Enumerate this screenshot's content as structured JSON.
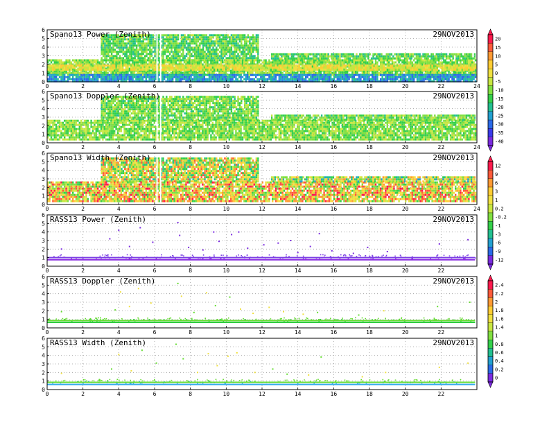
{
  "figure": {
    "date_label": "29NOV2013"
  },
  "chart_data": [
    {
      "type": "heatmap",
      "title": "Spano13 Power (Zenith)",
      "date": "29NOV2013",
      "xlim": [
        0,
        24
      ],
      "ylim": [
        0,
        6
      ],
      "xticks": [
        "0",
        "2",
        "4",
        "6",
        "8",
        "10",
        "12",
        "14",
        "16",
        "18",
        "20",
        "22",
        "24"
      ],
      "yticks": [
        "0",
        "1",
        "2",
        "3",
        "4",
        "5",
        "6"
      ],
      "grid": true,
      "colorbar": "cb-a",
      "layers": [
        {
          "x0": 3.0,
          "x1": 11.8,
          "y0": 2.6,
          "y1": 5.5,
          "level": 0.45
        },
        {
          "x0": 0.0,
          "x1": 23.9,
          "y0": 0.9,
          "y1": 2.6,
          "level": 0.5
        },
        {
          "x0": 12.5,
          "x1": 23.9,
          "y0": 2.6,
          "y1": 3.3,
          "level": 0.45
        },
        {
          "x0": 0.0,
          "x1": 23.9,
          "y0": 0.1,
          "y1": 0.9,
          "level": 0.25
        },
        {
          "x0": 0.0,
          "x1": 23.9,
          "y0": 1.5,
          "y1": 2.0,
          "level": 0.65
        }
      ]
    },
    {
      "type": "heatmap",
      "title": "Spano13 Doppler (Zenith)",
      "date": "29NOV2013",
      "xlim": [
        0,
        24
      ],
      "ylim": [
        0,
        6
      ],
      "xticks": [
        "0",
        "2",
        "4",
        "6",
        "8",
        "10",
        "12",
        "14",
        "16",
        "18",
        "20",
        "22",
        "24"
      ],
      "yticks": [
        "0",
        "1",
        "2",
        "3",
        "4",
        "5",
        "6"
      ],
      "grid": true,
      "colorbar": "cb-a",
      "layers": [
        {
          "x0": 3.0,
          "x1": 11.8,
          "y0": 2.6,
          "y1": 5.5,
          "level": 0.48
        },
        {
          "x0": 0.0,
          "x1": 23.9,
          "y0": 0.3,
          "y1": 2.7,
          "level": 0.5
        },
        {
          "x0": 12.5,
          "x1": 23.9,
          "y0": 2.6,
          "y1": 3.3,
          "level": 0.48
        }
      ]
    },
    {
      "type": "heatmap",
      "title": "Spano13 Width (Zenith)",
      "date": "29NOV2013",
      "xlim": [
        0,
        24
      ],
      "ylim": [
        0,
        6
      ],
      "xticks": [
        "0",
        "2",
        "4",
        "6",
        "8",
        "10",
        "12",
        "14",
        "16",
        "18",
        "20",
        "22",
        "24"
      ],
      "yticks": [
        "0",
        "1",
        "2",
        "3",
        "4",
        "5",
        "6"
      ],
      "grid": true,
      "colorbar": "cb-b",
      "layers": [
        {
          "x0": 3.0,
          "x1": 11.8,
          "y0": 2.6,
          "y1": 5.5,
          "level": 0.62
        },
        {
          "x0": 0.0,
          "x1": 23.9,
          "y0": 0.4,
          "y1": 2.7,
          "level": 0.7
        },
        {
          "x0": 12.5,
          "x1": 23.9,
          "y0": 2.6,
          "y1": 3.3,
          "level": 0.55
        }
      ]
    },
    {
      "type": "scatter",
      "title": "RASS13 Power (Zenith)",
      "date": "29NOV2013",
      "xlim": [
        0,
        24
      ],
      "ylim": [
        0,
        6
      ],
      "xticks": [
        "0",
        "2",
        "4",
        "6",
        "8",
        "10",
        "12",
        "14",
        "16",
        "18",
        "20",
        "22"
      ],
      "yticks": [
        "0",
        "1",
        "2",
        "3",
        "4",
        "5",
        "6"
      ],
      "grid": true,
      "colorbar": "cb-b",
      "bands": [
        {
          "y": 0.75,
          "x0": 0.0,
          "x1": 23.9,
          "color": "#8a2be2"
        },
        {
          "y": 1.0,
          "x0": 0.0,
          "x1": 23.9,
          "color": "#7b3fe4"
        }
      ],
      "points": [
        {
          "x": 0.8,
          "y": 2.0
        },
        {
          "x": 3.5,
          "y": 3.2
        },
        {
          "x": 4.0,
          "y": 4.2
        },
        {
          "x": 4.6,
          "y": 2.3
        },
        {
          "x": 5.2,
          "y": 4.5
        },
        {
          "x": 5.9,
          "y": 2.8
        },
        {
          "x": 7.3,
          "y": 5.1
        },
        {
          "x": 7.4,
          "y": 3.6
        },
        {
          "x": 7.9,
          "y": 2.2
        },
        {
          "x": 8.7,
          "y": 1.9
        },
        {
          "x": 9.3,
          "y": 4.0
        },
        {
          "x": 9.6,
          "y": 2.9
        },
        {
          "x": 10.3,
          "y": 3.7
        },
        {
          "x": 10.7,
          "y": 4.0
        },
        {
          "x": 11.2,
          "y": 2.1
        },
        {
          "x": 12.1,
          "y": 2.5
        },
        {
          "x": 12.9,
          "y": 2.7
        },
        {
          "x": 13.6,
          "y": 3.0
        },
        {
          "x": 14.0,
          "y": 1.6
        },
        {
          "x": 14.7,
          "y": 2.3
        },
        {
          "x": 15.2,
          "y": 3.8
        },
        {
          "x": 15.9,
          "y": 1.8
        },
        {
          "x": 17.1,
          "y": 1.5
        },
        {
          "x": 17.9,
          "y": 2.2
        },
        {
          "x": 19.0,
          "y": 1.7
        },
        {
          "x": 21.9,
          "y": 2.6
        },
        {
          "x": 23.5,
          "y": 3.1
        }
      ]
    },
    {
      "type": "scatter",
      "title": "RASS13 Doppler (Zenith)",
      "date": "29NOV2013",
      "xlim": [
        0,
        24
      ],
      "ylim": [
        0,
        6
      ],
      "xticks": [
        "0",
        "2",
        "4",
        "6",
        "8",
        "10",
        "12",
        "14",
        "16",
        "18",
        "20",
        "22"
      ],
      "yticks": [
        "0",
        "1",
        "2",
        "3",
        "4",
        "5",
        "6"
      ],
      "grid": true,
      "colorbar": "cb-c",
      "bands": [
        {
          "y": 0.65,
          "x0": 0.0,
          "x1": 23.9,
          "color": "#2ecc40"
        },
        {
          "y": 0.85,
          "x0": 0.0,
          "x1": 23.9,
          "color": "#66dd33"
        }
      ],
      "points": [
        {
          "x": 0.8,
          "y": 1.9
        },
        {
          "x": 3.8,
          "y": 2.1
        },
        {
          "x": 4.1,
          "y": 4.2
        },
        {
          "x": 4.6,
          "y": 2.5
        },
        {
          "x": 5.1,
          "y": 4.6
        },
        {
          "x": 5.8,
          "y": 2.9
        },
        {
          "x": 7.3,
          "y": 5.2
        },
        {
          "x": 7.5,
          "y": 3.7
        },
        {
          "x": 8.2,
          "y": 1.8
        },
        {
          "x": 8.9,
          "y": 4.1
        },
        {
          "x": 9.4,
          "y": 2.6
        },
        {
          "x": 10.2,
          "y": 3.6
        },
        {
          "x": 10.8,
          "y": 2.2
        },
        {
          "x": 11.5,
          "y": 1.7
        },
        {
          "x": 12.4,
          "y": 2.4
        },
        {
          "x": 13.2,
          "y": 1.9
        },
        {
          "x": 14.3,
          "y": 1.6
        },
        {
          "x": 15.1,
          "y": 1.8
        },
        {
          "x": 17.4,
          "y": 1.5
        },
        {
          "x": 18.8,
          "y": 2.0
        },
        {
          "x": 21.8,
          "y": 2.5
        },
        {
          "x": 23.6,
          "y": 3.0
        }
      ]
    },
    {
      "type": "scatter",
      "title": "RASS13 Width (Zenith)",
      "date": "29NOV2013",
      "xlim": [
        0,
        24
      ],
      "ylim": [
        0,
        6
      ],
      "xticks": [
        "0",
        "2",
        "4",
        "6",
        "8",
        "10",
        "12",
        "14",
        "16",
        "18",
        "20",
        "22"
      ],
      "yticks": [
        "0",
        "1",
        "2",
        "3",
        "4",
        "5",
        "6"
      ],
      "grid": true,
      "colorbar": "cb-c",
      "bands": [
        {
          "y": 0.6,
          "x0": 0.0,
          "x1": 23.9,
          "color": "#33aaee"
        },
        {
          "y": 0.85,
          "x0": 0.0,
          "x1": 23.9,
          "color": "#66dd33"
        }
      ],
      "points": [
        {
          "x": 0.8,
          "y": 1.9
        },
        {
          "x": 3.6,
          "y": 2.4
        },
        {
          "x": 4.0,
          "y": 4.1
        },
        {
          "x": 4.7,
          "y": 2.2
        },
        {
          "x": 5.3,
          "y": 4.6
        },
        {
          "x": 6.1,
          "y": 3.1
        },
        {
          "x": 7.2,
          "y": 5.3
        },
        {
          "x": 7.6,
          "y": 3.6
        },
        {
          "x": 8.4,
          "y": 2.0
        },
        {
          "x": 9.0,
          "y": 4.2
        },
        {
          "x": 9.5,
          "y": 2.8
        },
        {
          "x": 10.1,
          "y": 3.9
        },
        {
          "x": 10.6,
          "y": 4.3
        },
        {
          "x": 11.6,
          "y": 2.0
        },
        {
          "x": 12.6,
          "y": 2.4
        },
        {
          "x": 13.4,
          "y": 1.8
        },
        {
          "x": 14.6,
          "y": 1.7
        },
        {
          "x": 15.3,
          "y": 3.8
        },
        {
          "x": 17.6,
          "y": 1.5
        },
        {
          "x": 18.9,
          "y": 2.0
        },
        {
          "x": 21.9,
          "y": 2.6
        },
        {
          "x": 23.5,
          "y": 3.1
        }
      ]
    }
  ],
  "colorbars": [
    {
      "id": "cb-a",
      "labels": [
        "20",
        "15",
        "10",
        "5",
        "0",
        "-5",
        "-10",
        "-15",
        "-20",
        "-25",
        "-30",
        "-35",
        "-40"
      ],
      "colors": [
        "#ff1a4d",
        "#ff5a3a",
        "#ff9a33",
        "#ffcc33",
        "#f0e040",
        "#c8e640",
        "#80e040",
        "#33d04a",
        "#22c090",
        "#22a0d0",
        "#2a6ae8",
        "#3a3aea",
        "#7a2ae0"
      ]
    },
    {
      "id": "cb-b",
      "labels": [
        "12",
        "9",
        "6",
        "3",
        "1",
        "0.2",
        "-0.2",
        "-1",
        "-3",
        "-6",
        "-9",
        "-12"
      ],
      "colors": [
        "#ff1a4d",
        "#ff5a3a",
        "#ff9a33",
        "#ffcc33",
        "#f0e040",
        "#c8e640",
        "#80e040",
        "#33d04a",
        "#22c090",
        "#22a0d0",
        "#2a6ae8",
        "#7a2ae0"
      ]
    },
    {
      "id": "cb-c",
      "labels": [
        "2.4",
        "2.2",
        "2",
        "1.8",
        "1.6",
        "1.4",
        "1",
        "0.8",
        "0.6",
        "0.4",
        "0.2",
        "0"
      ],
      "colors": [
        "#ff1a4d",
        "#ff5a3a",
        "#ff9a33",
        "#ffcc33",
        "#f0e040",
        "#c8e640",
        "#80e040",
        "#33d04a",
        "#22c090",
        "#22a0d0",
        "#2a6ae8",
        "#7a2ae0"
      ]
    }
  ]
}
